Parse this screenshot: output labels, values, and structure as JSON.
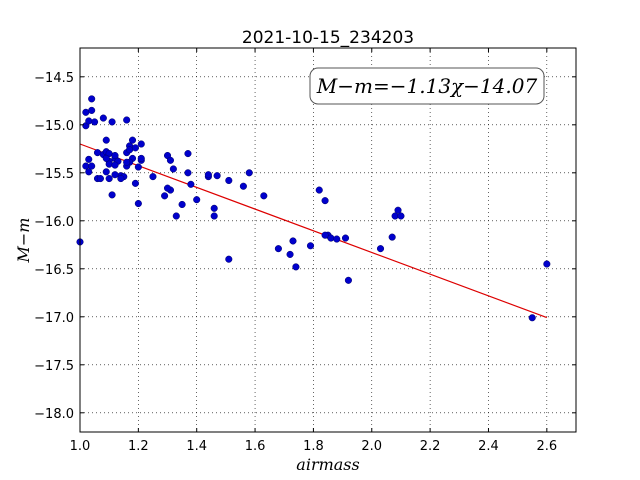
{
  "chart_data": {
    "type": "scatter",
    "title": "2021-10-15_234203",
    "xlabel": "airmass",
    "ylabel": "M−m",
    "xlim": [
      1.0,
      2.7
    ],
    "ylim": [
      -18.2,
      -14.2
    ],
    "y_inverted": true,
    "xticks": [
      1.0,
      1.2,
      1.4,
      1.6,
      1.8,
      2.0,
      2.2,
      2.4,
      2.6
    ],
    "xtick_labels": [
      "1.0",
      "1.2",
      "1.4",
      "1.6",
      "1.8",
      "2.0",
      "2.2",
      "2.4",
      "2.6"
    ],
    "yticks": [
      -14.5,
      -15.0,
      -15.5,
      -16.0,
      -16.5,
      -17.0,
      -17.5,
      -18.0
    ],
    "ytick_labels": [
      "−14.5",
      "−15.0",
      "−15.5",
      "−16.0",
      "−16.5",
      "−17.0",
      "−17.5",
      "−18.0"
    ],
    "grid": true,
    "annotation": "M−m=−1.13χ−14.07",
    "colors": {
      "points": "#0000cc",
      "fit": "#dd0000"
    },
    "fit": {
      "slope": -1.13,
      "intercept": -14.07,
      "x_range": [
        1.0,
        2.6
      ]
    },
    "points": {
      "x": [
        1.0,
        1.02,
        1.02,
        1.03,
        1.03,
        1.04,
        1.05,
        1.02,
        1.04,
        1.03,
        1.04,
        1.06,
        1.08,
        1.11,
        1.06,
        1.09,
        1.09,
        1.1,
        1.12,
        1.13,
        1.14,
        1.1,
        1.12,
        1.16,
        1.15,
        1.17,
        1.17,
        1.16,
        1.18,
        1.19,
        1.21,
        1.21,
        1.18,
        1.17,
        1.19,
        1.08,
        1.1,
        1.12,
        1.1,
        1.14,
        1.16,
        1.2,
        1.21,
        1.09,
        1.11,
        1.07,
        1.09,
        1.16,
        1.12,
        1.2,
        1.25,
        1.3,
        1.31,
        1.32,
        1.37,
        1.37,
        1.38,
        1.31,
        1.29,
        1.3,
        1.35,
        1.33,
        1.4,
        1.44,
        1.46,
        1.47,
        1.51,
        1.46,
        1.44,
        1.56,
        1.58,
        1.63,
        1.51,
        1.68,
        1.72,
        1.73,
        1.74,
        1.79,
        1.82,
        1.84,
        1.85,
        1.84,
        1.86,
        1.88,
        1.91,
        1.92,
        2.03,
        2.07,
        2.08,
        2.09,
        2.1,
        2.55,
        2.6
      ],
      "y": [
        -16.22,
        -15.43,
        -15.01,
        -15.49,
        -15.36,
        -14.73,
        -14.97,
        -14.87,
        -14.85,
        -14.96,
        -15.43,
        -15.29,
        -15.31,
        -14.97,
        -15.56,
        -15.16,
        -15.28,
        -15.3,
        -15.35,
        -15.38,
        -15.53,
        -15.38,
        -15.52,
        -15.29,
        -15.54,
        -15.22,
        -15.26,
        -14.95,
        -15.16,
        -15.24,
        -15.2,
        -15.37,
        -15.35,
        -15.39,
        -15.61,
        -14.93,
        -15.41,
        -15.42,
        -15.56,
        -15.56,
        -15.43,
        -15.44,
        -15.35,
        -15.49,
        -15.73,
        -15.56,
        -15.35,
        -15.39,
        -15.32,
        -15.82,
        -15.54,
        -15.32,
        -15.37,
        -15.46,
        -15.3,
        -15.5,
        -15.62,
        -15.68,
        -15.74,
        -15.66,
        -15.83,
        -15.95,
        -15.78,
        -15.54,
        -15.87,
        -15.53,
        -15.58,
        -15.95,
        -15.52,
        -15.64,
        -15.5,
        -15.74,
        -16.4,
        -16.29,
        -16.35,
        -16.21,
        -16.48,
        -16.26,
        -15.68,
        -15.79,
        -16.15,
        -16.15,
        -16.18,
        -16.19,
        -16.18,
        -16.62,
        -16.29,
        -16.17,
        -15.95,
        -15.89,
        -15.95,
        -17.01,
        -16.45
      ]
    }
  }
}
